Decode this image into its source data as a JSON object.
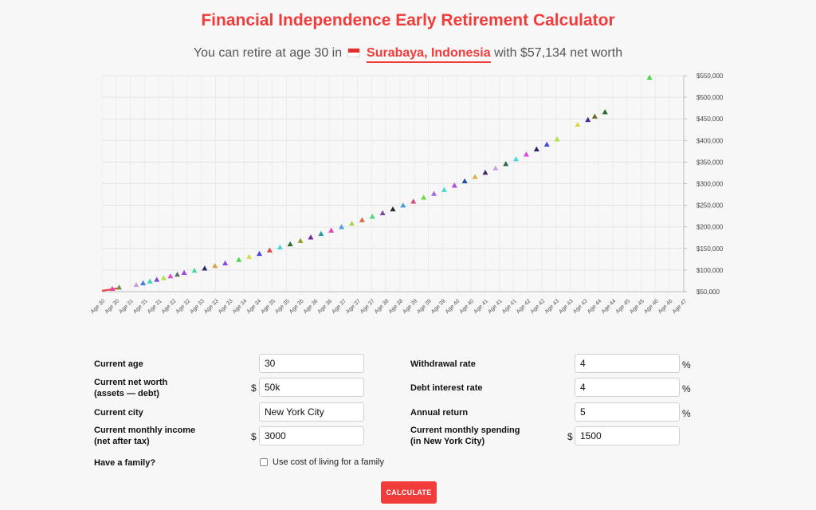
{
  "header": {
    "title": "Financial Independence Early Retirement Calculator",
    "subtitle_prefix": "You can retire at age 30 in",
    "city_link": "Surabaya, Indonesia",
    "subtitle_suffix": "with $57,134 net worth",
    "flag_icon": "indonesia-flag-icon"
  },
  "chart_data": {
    "type": "scatter",
    "title": "",
    "y_axis_position": "right",
    "ylim": [
      50000,
      550000
    ],
    "y_ticks": [
      "$50,000",
      "$100,000",
      "$150,000",
      "$200,000",
      "$250,000",
      "$300,000",
      "$350,000",
      "$400,000",
      "$450,000",
      "$500,000",
      "$550,000"
    ],
    "x_ticks": [
      "Age 30",
      "Age 30",
      "Age 31",
      "Age 31",
      "Age 31",
      "Age 32",
      "Age 32",
      "Age 33",
      "Age 33",
      "Age 33",
      "Age 34",
      "Age 34",
      "Age 35",
      "Age 35",
      "Age 35",
      "Age 36",
      "Age 36",
      "Age 37",
      "Age 37",
      "Age 37",
      "Age 38",
      "Age 38",
      "Age 39",
      "Age 39",
      "Age 39",
      "Age 40",
      "Age 40",
      "Age 41",
      "Age 41",
      "Age 41",
      "Age 42",
      "Age 42",
      "Age 43",
      "Age 43",
      "Age 43",
      "Age 44",
      "Age 44",
      "Age 45",
      "Age 45",
      "Age 46",
      "Age 46",
      "Age 47"
    ],
    "grid": true,
    "marker": "triangle",
    "line": {
      "color": "#f23b3b",
      "points": [
        [
          30.0,
          52000
        ],
        [
          30.5,
          58000
        ]
      ]
    },
    "points": [
      {
        "x": 30.3,
        "y": 57000,
        "c": "#d94ba0"
      },
      {
        "x": 30.5,
        "y": 60000,
        "c": "#7a8a4a"
      },
      {
        "x": 31.0,
        "y": 66000,
        "c": "#c8a0e0"
      },
      {
        "x": 31.2,
        "y": 70000,
        "c": "#4a7ad9"
      },
      {
        "x": 31.4,
        "y": 74000,
        "c": "#3ad9b0"
      },
      {
        "x": 31.6,
        "y": 78000,
        "c": "#7a4ad9"
      },
      {
        "x": 31.8,
        "y": 82000,
        "c": "#b0e04a"
      },
      {
        "x": 32.0,
        "y": 86000,
        "c": "#d94ad9"
      },
      {
        "x": 32.2,
        "y": 90000,
        "c": "#6a6a6a"
      },
      {
        "x": 32.4,
        "y": 94000,
        "c": "#a04ad9"
      },
      {
        "x": 32.7,
        "y": 99000,
        "c": "#4ad9a0"
      },
      {
        "x": 33.0,
        "y": 104000,
        "c": "#2a2a6a"
      },
      {
        "x": 33.3,
        "y": 110000,
        "c": "#d9a04a"
      },
      {
        "x": 33.6,
        "y": 116000,
        "c": "#8a4ad9"
      },
      {
        "x": 34.0,
        "y": 124000,
        "c": "#4ad94a"
      },
      {
        "x": 34.3,
        "y": 131000,
        "c": "#d9d94a"
      },
      {
        "x": 34.6,
        "y": 138000,
        "c": "#4a4ad9"
      },
      {
        "x": 34.9,
        "y": 146000,
        "c": "#d94a4a"
      },
      {
        "x": 35.2,
        "y": 153000,
        "c": "#4ad9d9"
      },
      {
        "x": 35.5,
        "y": 160000,
        "c": "#2a6a2a"
      },
      {
        "x": 35.8,
        "y": 168000,
        "c": "#9a9a2a"
      },
      {
        "x": 36.1,
        "y": 176000,
        "c": "#6a2a9a"
      },
      {
        "x": 36.4,
        "y": 184000,
        "c": "#2a9a9a"
      },
      {
        "x": 36.7,
        "y": 192000,
        "c": "#d94ab0"
      },
      {
        "x": 37.0,
        "y": 200000,
        "c": "#4aa0d9"
      },
      {
        "x": 37.3,
        "y": 208000,
        "c": "#a0d94a"
      },
      {
        "x": 37.6,
        "y": 216000,
        "c": "#d96a4a"
      },
      {
        "x": 37.9,
        "y": 224000,
        "c": "#4ad97a"
      },
      {
        "x": 38.2,
        "y": 232000,
        "c": "#7a4a9a"
      },
      {
        "x": 38.5,
        "y": 241000,
        "c": "#2a2a2a"
      },
      {
        "x": 38.8,
        "y": 250000,
        "c": "#4a9ad9"
      },
      {
        "x": 39.1,
        "y": 259000,
        "c": "#d94a7a"
      },
      {
        "x": 39.4,
        "y": 268000,
        "c": "#6ad94a"
      },
      {
        "x": 39.7,
        "y": 277000,
        "c": "#9a6ad9"
      },
      {
        "x": 40.0,
        "y": 286000,
        "c": "#4ad9c8"
      },
      {
        "x": 40.3,
        "y": 296000,
        "c": "#b04ad9"
      },
      {
        "x": 40.6,
        "y": 306000,
        "c": "#2a4a9a"
      },
      {
        "x": 40.9,
        "y": 316000,
        "c": "#d9b04a"
      },
      {
        "x": 41.2,
        "y": 326000,
        "c": "#4a2a6a"
      },
      {
        "x": 41.5,
        "y": 336000,
        "c": "#c8a0e0"
      },
      {
        "x": 41.8,
        "y": 346000,
        "c": "#2a6a4a"
      },
      {
        "x": 42.1,
        "y": 357000,
        "c": "#4ad9d9"
      },
      {
        "x": 42.4,
        "y": 368000,
        "c": "#d94ad9"
      },
      {
        "x": 42.7,
        "y": 380000,
        "c": "#2a2a6a"
      },
      {
        "x": 43.0,
        "y": 391000,
        "c": "#4a4ad9"
      },
      {
        "x": 43.3,
        "y": 403000,
        "c": "#b0e04a"
      },
      {
        "x": 43.9,
        "y": 437000,
        "c": "#d9d94a"
      },
      {
        "x": 44.2,
        "y": 448000,
        "c": "#4a2a9a"
      },
      {
        "x": 44.4,
        "y": 456000,
        "c": "#6a6a2a"
      },
      {
        "x": 44.7,
        "y": 466000,
        "c": "#2a6a2a"
      },
      {
        "x": 46.0,
        "y": 546000,
        "c": "#4ad94a"
      }
    ]
  },
  "form": {
    "current_age": {
      "label": "Current age",
      "value": "30"
    },
    "net_worth": {
      "label_line1": "Current net worth",
      "label_line2": "(assets — debt)",
      "prefix": "$",
      "value": "50k"
    },
    "city": {
      "label": "Current city",
      "value": "New York City"
    },
    "income": {
      "label_line1": "Current monthly income",
      "label_line2": "(net after tax)",
      "prefix": "$",
      "value": "3000"
    },
    "family": {
      "label": "Have a family?",
      "checkbox_label": "Use cost of living for a family"
    },
    "withdrawal": {
      "label": "Withdrawal rate",
      "value": "4",
      "suffix": "%"
    },
    "debt_interest": {
      "label": "Debt interest rate",
      "value": "4",
      "suffix": "%"
    },
    "annual_return": {
      "label": "Annual return",
      "value": "5",
      "suffix": "%"
    },
    "spending": {
      "label_line1": "Current monthly spending",
      "label_line2": "(in New York City)",
      "prefix": "$",
      "value": "1500"
    },
    "calculate_label": "CALCULATE"
  }
}
